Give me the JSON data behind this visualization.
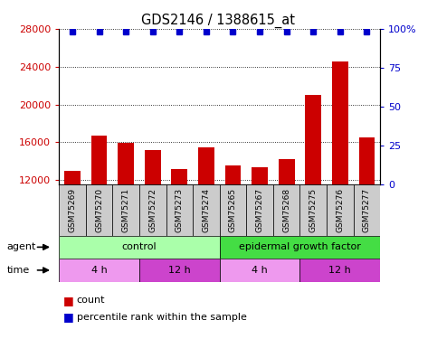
{
  "title": "GDS2146 / 1388615_at",
  "samples": [
    "GSM75269",
    "GSM75270",
    "GSM75271",
    "GSM75272",
    "GSM75273",
    "GSM75274",
    "GSM75265",
    "GSM75267",
    "GSM75268",
    "GSM75275",
    "GSM75276",
    "GSM75277"
  ],
  "counts": [
    13000,
    16700,
    15900,
    15200,
    13200,
    15500,
    13500,
    13400,
    14200,
    21000,
    24500,
    16500
  ],
  "percentile_ranks": [
    98,
    98,
    98,
    98,
    98,
    98,
    98,
    98,
    98,
    98,
    98,
    98
  ],
  "ylim_left": [
    11500,
    28000
  ],
  "ylim_right": [
    0,
    100
  ],
  "yticks_left": [
    12000,
    16000,
    20000,
    24000,
    28000
  ],
  "yticks_right": [
    0,
    25,
    50,
    75,
    100
  ],
  "bar_color": "#cc0000",
  "dot_color": "#0000cc",
  "bar_width": 0.6,
  "agent_groups": [
    {
      "label": "control",
      "start": 0,
      "end": 6,
      "color": "#aaffaa"
    },
    {
      "label": "epidermal growth factor",
      "start": 6,
      "end": 12,
      "color": "#44dd44"
    }
  ],
  "time_groups": [
    {
      "label": "4 h",
      "start": 0,
      "end": 3,
      "color": "#ee99ee"
    },
    {
      "label": "12 h",
      "start": 3,
      "end": 6,
      "color": "#cc44cc"
    },
    {
      "label": "4 h",
      "start": 6,
      "end": 9,
      "color": "#ee99ee"
    },
    {
      "label": "12 h",
      "start": 9,
      "end": 12,
      "color": "#cc44cc"
    }
  ],
  "legend_items": [
    {
      "label": "count",
      "color": "#cc0000"
    },
    {
      "label": "percentile rank within the sample",
      "color": "#0000cc"
    }
  ],
  "left_tick_color": "#cc0000",
  "right_tick_color": "#0000cc",
  "sample_box_color": "#cccccc",
  "grid_color": "#000000"
}
